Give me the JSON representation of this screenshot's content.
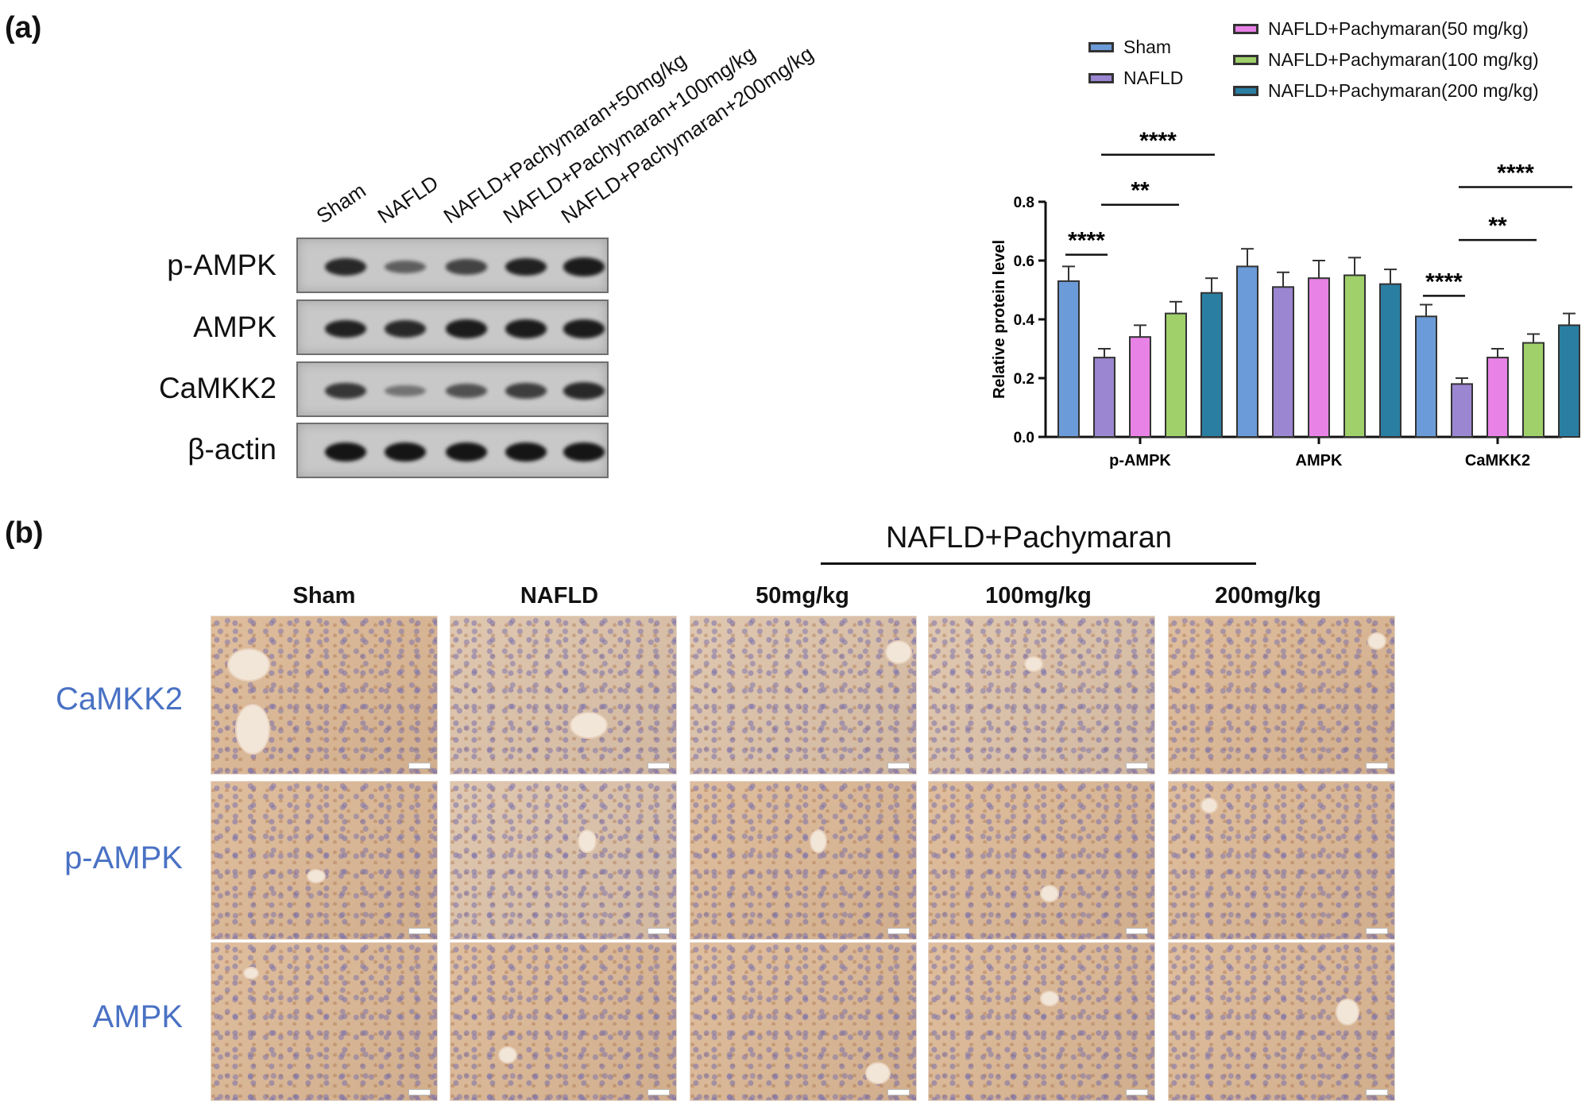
{
  "panel_a_label": "(a)",
  "panel_b_label": "(b)",
  "western_blot": {
    "lanes": [
      "Sham",
      "NAFLD",
      "NAFLD+Pachymaran+50mg/kg",
      "NAFLD+Pachymaran+100mg/kg",
      "NAFLD+Pachymaran+200mg/kg"
    ],
    "proteins": [
      {
        "name": "p-AMPK",
        "band_intensity": [
          0.85,
          0.45,
          0.65,
          0.9,
          0.95
        ]
      },
      {
        "name": "AMPK",
        "band_intensity": [
          0.9,
          0.85,
          0.95,
          0.95,
          0.95
        ]
      },
      {
        "name": "CaMKK2",
        "band_intensity": [
          0.75,
          0.3,
          0.55,
          0.7,
          0.85
        ]
      },
      {
        "name": "β-actin",
        "band_intensity": [
          1.0,
          1.0,
          1.0,
          1.0,
          1.0
        ]
      }
    ]
  },
  "legend": [
    {
      "label": "Sham",
      "color": "#6b9bd8"
    },
    {
      "label": "NAFLD",
      "color": "#9b86d1"
    },
    {
      "label": "NAFLD+Pachymaran(50 mg/kg)",
      "color": "#e882e6"
    },
    {
      "label": "NAFLD+Pachymaran(100 mg/kg)",
      "color": "#9fd06a"
    },
    {
      "label": "NAFLD+Pachymaran(200 mg/kg)",
      "color": "#2a7ea2"
    }
  ],
  "chart_data": {
    "type": "bar",
    "ylabel": "Relative protein level",
    "ylim": [
      0,
      0.8
    ],
    "yticks": [
      "0.0",
      "0.2",
      "0.4",
      "0.6",
      "0.8"
    ],
    "categories": [
      "p-AMPK",
      "AMPK",
      "CaMKK2"
    ],
    "series": [
      {
        "name": "Sham",
        "color": "#6b9bd8",
        "values": [
          0.53,
          0.58,
          0.41
        ],
        "errors": [
          0.05,
          0.06,
          0.04
        ]
      },
      {
        "name": "NAFLD",
        "color": "#9b86d1",
        "values": [
          0.27,
          0.51,
          0.18
        ],
        "errors": [
          0.03,
          0.05,
          0.02
        ]
      },
      {
        "name": "NAFLD+Pachymaran(50 mg/kg)",
        "color": "#e882e6",
        "values": [
          0.34,
          0.54,
          0.27
        ],
        "errors": [
          0.04,
          0.06,
          0.03
        ]
      },
      {
        "name": "NAFLD+Pachymaran(100 mg/kg)",
        "color": "#9fd06a",
        "values": [
          0.42,
          0.55,
          0.32
        ],
        "errors": [
          0.04,
          0.06,
          0.03
        ]
      },
      {
        "name": "NAFLD+Pachymaran(200 mg/kg)",
        "color": "#2a7ea2",
        "values": [
          0.49,
          0.52,
          0.38
        ],
        "errors": [
          0.05,
          0.05,
          0.04
        ]
      }
    ],
    "significance": [
      {
        "category": 0,
        "from": 0,
        "to": 1,
        "label": "****",
        "level": 0.62
      },
      {
        "category": 0,
        "from": 1,
        "to": 3,
        "label": "**",
        "level": 0.79
      },
      {
        "category": 0,
        "from": 1,
        "to": 4,
        "label": "****",
        "level": 0.96
      },
      {
        "category": 2,
        "from": 0,
        "to": 1,
        "label": "****",
        "level": 0.48
      },
      {
        "category": 2,
        "from": 1,
        "to": 3,
        "label": "**",
        "level": 0.67
      },
      {
        "category": 2,
        "from": 1,
        "to": 4,
        "label": "****",
        "level": 0.85
      }
    ]
  },
  "ihc": {
    "group_header": "NAFLD+Pachymaran",
    "columns": [
      "Sham",
      "NAFLD",
      "50mg/kg",
      "100mg/kg",
      "200mg/kg"
    ],
    "rows": [
      "CaMKK2",
      "p-AMPK",
      "AMPK"
    ]
  }
}
